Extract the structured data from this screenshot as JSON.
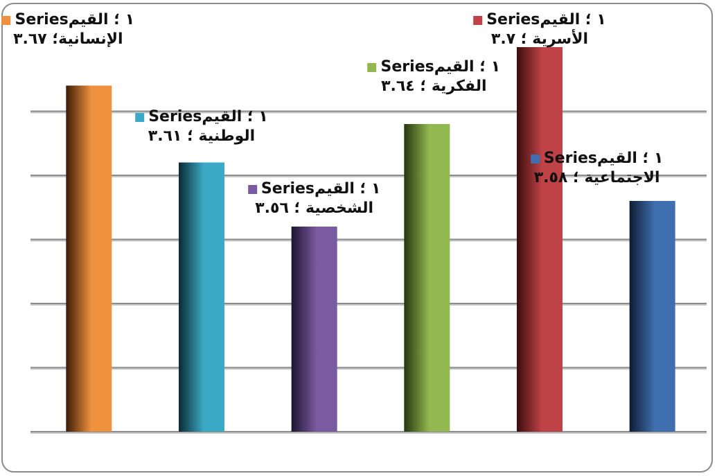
{
  "chart_data": {
    "type": "bar",
    "categories": [
      "الإنسانية",
      "الوطنية",
      "الشخصية",
      "الفكرية",
      "الأسرية",
      "الاجتماعية"
    ],
    "series": [
      {
        "name": "Series١",
        "values": [
          3.67,
          3.61,
          3.56,
          3.64,
          3.7,
          3.58
        ]
      }
    ],
    "value_label": "القيم",
    "ylim": [
      3.4,
      3.7
    ],
    "grid": true,
    "legend": "none",
    "data_labels": [
      {
        "line1": "Series١ ؛ القيم",
        "line2": "الإنسانية؛ ٣.٦٧"
      },
      {
        "line1": "Series١ ؛ القيم",
        "line2": "الوطنية ؛ ٣.٦١"
      },
      {
        "line1": "Series١ ؛ القيم",
        "line2": "الشخصية ؛ ٣.٥٦"
      },
      {
        "line1": "Series١ ؛ القيم",
        "line2": "الفكرية ؛ ٣.٦٤"
      },
      {
        "line1": "Series١ ؛ القيم",
        "line2": "الأسرية ؛ ٣.٧"
      },
      {
        "line1": "Series١ ؛ القيم",
        "line2": "الاجتماعية ؛ ٣.٥٨"
      }
    ],
    "colors": [
      "#f0913f",
      "#3aaac6",
      "#7a5aa0",
      "#92b850",
      "#bf4346",
      "#3f6fae"
    ],
    "dark_colors": [
      "#3a1d05",
      "#0b2a33",
      "#1e1430",
      "#27360e",
      "#3c0c0d",
      "#0e1c33"
    ]
  }
}
